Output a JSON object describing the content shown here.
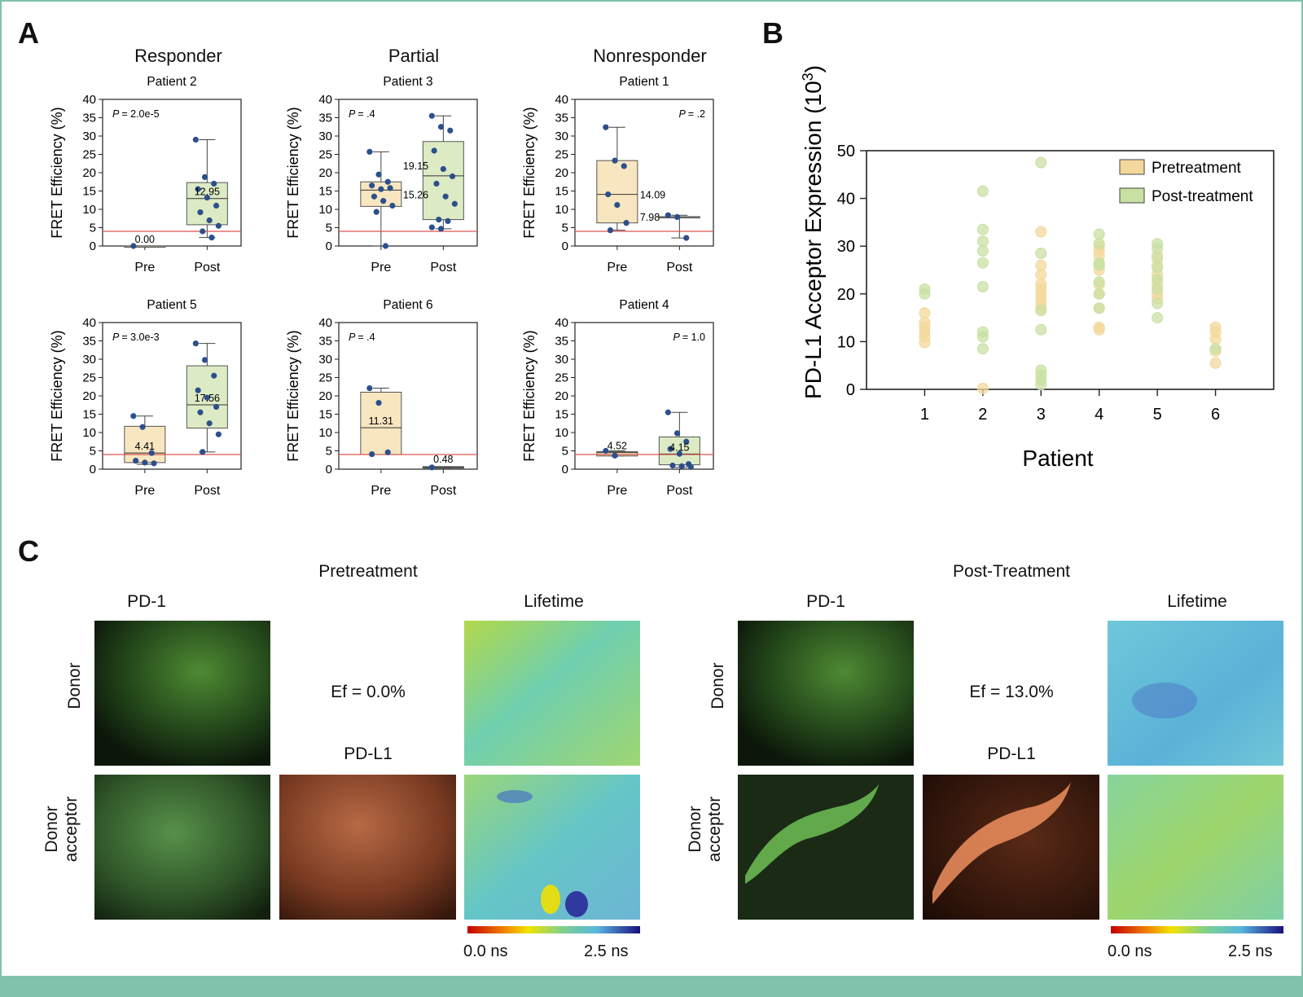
{
  "panels": {
    "a_label": "A",
    "b_label": "B",
    "c_label": "C"
  },
  "panel_a": {
    "groups": [
      "Responder",
      "Partial",
      "Nonresponder"
    ],
    "y_label": "FRET Efficiency (%)",
    "categories": [
      "Pre",
      "Post"
    ],
    "threshold_color": "#d9534f",
    "pre_color": "#f8e6c0",
    "post_color": "#dcebc4",
    "point_color": "#2c4f8c"
  },
  "chart_data": [
    {
      "type": "box",
      "title": "Patient 2",
      "p_value": "= 2.0e-5",
      "categories": [
        "Pre",
        "Post"
      ],
      "ylabel": "FRET Efficiency (%)",
      "ylim": [
        0,
        40
      ],
      "ticks": [
        0,
        5,
        10,
        15,
        20,
        25,
        30,
        35,
        40
      ],
      "threshold": 4,
      "series": [
        {
          "label": "0.00",
          "q1": 0,
          "median": 0,
          "q3": 0,
          "whisker_low": 0,
          "whisker_high": 0,
          "points": [
            0
          ]
        },
        {
          "label": "12.95",
          "q1": 5.8,
          "median": 12.95,
          "q3": 17.3,
          "whisker_low": 2.3,
          "whisker_high": 29,
          "points": [
            29,
            18.8,
            17,
            15.5,
            13.2,
            11,
            9.2,
            7,
            5.5,
            4,
            2.3
          ]
        }
      ]
    },
    {
      "type": "box",
      "title": "Patient 3",
      "p_value": "= .4",
      "categories": [
        "Pre",
        "Post"
      ],
      "ylabel": "FRET Efficiency (%)",
      "ylim": [
        0,
        40
      ],
      "ticks": [
        0,
        5,
        10,
        15,
        20,
        25,
        30,
        35,
        40
      ],
      "threshold": 4,
      "series": [
        {
          "label": "15.26",
          "q1": 10.8,
          "median": 15.26,
          "q3": 17.5,
          "whisker_low": 0,
          "whisker_high": 25.7,
          "points": [
            25.7,
            19.5,
            17.5,
            16.5,
            15.5,
            15.8,
            13.5,
            12.3,
            11,
            9.3,
            0
          ]
        },
        {
          "label": "19.15",
          "q1": 7.2,
          "median": 19.15,
          "q3": 28.5,
          "whisker_low": 4.7,
          "whisker_high": 35.5,
          "points": [
            35.5,
            32.5,
            31.5,
            26,
            21,
            19,
            17,
            13.5,
            11.5,
            7.2,
            6.8,
            5.1,
            4.7
          ]
        }
      ]
    },
    {
      "type": "box",
      "title": "Patient 1",
      "p_value": "= .2",
      "categories": [
        "Pre",
        "Post"
      ],
      "ylabel": "FRET Efficiency (%)",
      "ylim": [
        0,
        40
      ],
      "ticks": [
        0,
        5,
        10,
        15,
        20,
        25,
        30,
        35,
        40
      ],
      "threshold": 4,
      "series": [
        {
          "label": "14.09",
          "q1": 6.3,
          "median": 14.09,
          "q3": 23.3,
          "whisker_low": 4.3,
          "whisker_high": 32.4,
          "points": [
            32.4,
            23.3,
            21.8,
            14.1,
            11.2,
            6.3,
            4.3
          ]
        },
        {
          "label": "7.98",
          "q1": 7.98,
          "median": 7.98,
          "q3": 7.98,
          "whisker_low": 2.2,
          "whisker_high": 8.4,
          "points": [
            8.4,
            7.9,
            2.2
          ]
        }
      ]
    },
    {
      "type": "box",
      "title": "Patient 5",
      "p_value": "= 3.0e-3",
      "categories": [
        "Pre",
        "Post"
      ],
      "ylabel": "FRET Efficiency (%)",
      "ylim": [
        0,
        40
      ],
      "ticks": [
        0,
        5,
        10,
        15,
        20,
        25,
        30,
        35,
        40
      ],
      "threshold": 4,
      "series": [
        {
          "label": "4.41",
          "q1": 1.8,
          "median": 4.41,
          "q3": 11.7,
          "whisker_low": 1.3,
          "whisker_high": 14.5,
          "points": [
            14.5,
            11.5,
            4.41,
            2.3,
            1.8,
            1.6
          ]
        },
        {
          "label": "17.56",
          "q1": 11.2,
          "median": 17.56,
          "q3": 28.2,
          "whisker_low": 4.7,
          "whisker_high": 34.3,
          "points": [
            34.3,
            29.8,
            25.5,
            21.5,
            19.5,
            17,
            15.5,
            12.5,
            9.5,
            4.7
          ]
        }
      ]
    },
    {
      "type": "box",
      "title": "Patient 6",
      "p_value": "= .4",
      "categories": [
        "Pre",
        "Post"
      ],
      "ylabel": "FRET Efficiency (%)",
      "ylim": [
        0,
        40
      ],
      "ticks": [
        0,
        5,
        10,
        15,
        20,
        25,
        30,
        35,
        40
      ],
      "threshold": 4,
      "series": [
        {
          "label": "11.31",
          "q1": 4.0,
          "median": 11.31,
          "q3": 21.0,
          "whisker_low": 4.0,
          "whisker_high": 22.1,
          "points": [
            22.1,
            18.1,
            4.6,
            4.1
          ]
        },
        {
          "label": "0.48",
          "q1": 0.3,
          "median": 0.48,
          "q3": 0.7,
          "whisker_low": 0.3,
          "whisker_high": 0.7,
          "points": [
            0.48
          ]
        }
      ]
    },
    {
      "type": "box",
      "title": "Patient 4",
      "p_value": "= 1.0",
      "categories": [
        "Pre",
        "Post"
      ],
      "ylabel": "FRET Efficiency (%)",
      "ylim": [
        0,
        40
      ],
      "ticks": [
        0,
        5,
        10,
        15,
        20,
        25,
        30,
        35,
        40
      ],
      "threshold": 4,
      "series": [
        {
          "label": "4.52",
          "q1": 3.6,
          "median": 4.52,
          "q3": 4.8,
          "whisker_low": 3.6,
          "whisker_high": 5.0,
          "points": [
            5.0,
            3.7
          ]
        },
        {
          "label": "4.15",
          "q1": 1.2,
          "median": 4.15,
          "q3": 8.8,
          "whisker_low": 0.5,
          "whisker_high": 15.5,
          "points": [
            15.5,
            9.8,
            7.5,
            5.5,
            4.2,
            1.4,
            1.0,
            0.8,
            0.6
          ]
        }
      ]
    },
    {
      "type": "scatter",
      "title": "",
      "xlabel": "Patient",
      "ylabel_main": "PD-L1 Acceptor Expression (10",
      "ylabel_sup": "3",
      "ylabel_end": ")",
      "xlim": [
        0,
        7
      ],
      "ylim": [
        0,
        50
      ],
      "x_ticks": [
        1,
        2,
        3,
        4,
        5,
        6
      ],
      "y_ticks": [
        0,
        10,
        20,
        30,
        40,
        50
      ],
      "legend_position": "top-right",
      "series": [
        {
          "name": "Pretreatment",
          "color": "#f3d89b",
          "points": [
            [
              1,
              9.8
            ],
            [
              1,
              11
            ],
            [
              1,
              12
            ],
            [
              1,
              13
            ],
            [
              1,
              14
            ],
            [
              1,
              16
            ],
            [
              2,
              0.2
            ],
            [
              3,
              17
            ],
            [
              3,
              18
            ],
            [
              3,
              19
            ],
            [
              3,
              20
            ],
            [
              3,
              21
            ],
            [
              3,
              22
            ],
            [
              3,
              24
            ],
            [
              3,
              26
            ],
            [
              3,
              33
            ],
            [
              4,
              12.5
            ],
            [
              4,
              13
            ],
            [
              4,
              17
            ],
            [
              4,
              20
            ],
            [
              4,
              22
            ],
            [
              4,
              25
            ],
            [
              4,
              26
            ],
            [
              4,
              28
            ],
            [
              4,
              29
            ],
            [
              4,
              30
            ],
            [
              5,
              19
            ],
            [
              5,
              20
            ],
            [
              5,
              21
            ],
            [
              5,
              22
            ],
            [
              5,
              23
            ],
            [
              5,
              24
            ],
            [
              5,
              26
            ],
            [
              5,
              28
            ],
            [
              6,
              5.5
            ],
            [
              6,
              8
            ],
            [
              6,
              10.5
            ],
            [
              6,
              12
            ],
            [
              6,
              13
            ]
          ]
        },
        {
          "name": "Post-treatment",
          "color": "#c9e0a3",
          "points": [
            [
              1,
              20
            ],
            [
              1,
              21
            ],
            [
              2,
              8.5
            ],
            [
              2,
              11
            ],
            [
              2,
              12
            ],
            [
              2,
              21.5
            ],
            [
              2,
              26.5
            ],
            [
              2,
              29
            ],
            [
              2,
              31
            ],
            [
              2,
              33.5
            ],
            [
              2,
              41.5
            ],
            [
              3,
              1
            ],
            [
              3,
              2
            ],
            [
              3,
              3
            ],
            [
              3,
              4
            ],
            [
              3,
              12.5
            ],
            [
              3,
              16.5
            ],
            [
              3,
              28.5
            ],
            [
              3,
              47.5
            ],
            [
              4,
              17
            ],
            [
              4,
              20
            ],
            [
              4,
              22.5
            ],
            [
              4,
              26
            ],
            [
              4,
              26.5
            ],
            [
              4,
              30.5
            ],
            [
              4,
              32.5
            ],
            [
              5,
              15
            ],
            [
              5,
              18
            ],
            [
              5,
              21
            ],
            [
              5,
              23
            ],
            [
              5,
              25.5
            ],
            [
              5,
              27.5
            ],
            [
              5,
              29.5
            ],
            [
              5,
              30.5
            ],
            [
              6,
              8.5
            ]
          ]
        }
      ]
    }
  ],
  "panel_c": {
    "pre_title": "Pretreatment",
    "post_title": "Post-Treatment",
    "pd1": "PD-1",
    "pdl1": "PD-L1",
    "lifetime": "Lifetime",
    "donor": "Donor",
    "donor_acceptor_1": "Donor",
    "donor_acceptor_2": "acceptor",
    "ef_pre": "Ef = 0.0%",
    "ef_post": "Ef = 13.0%",
    "cbar_min": "0.0 ns",
    "cbar_max": "2.5 ns"
  }
}
